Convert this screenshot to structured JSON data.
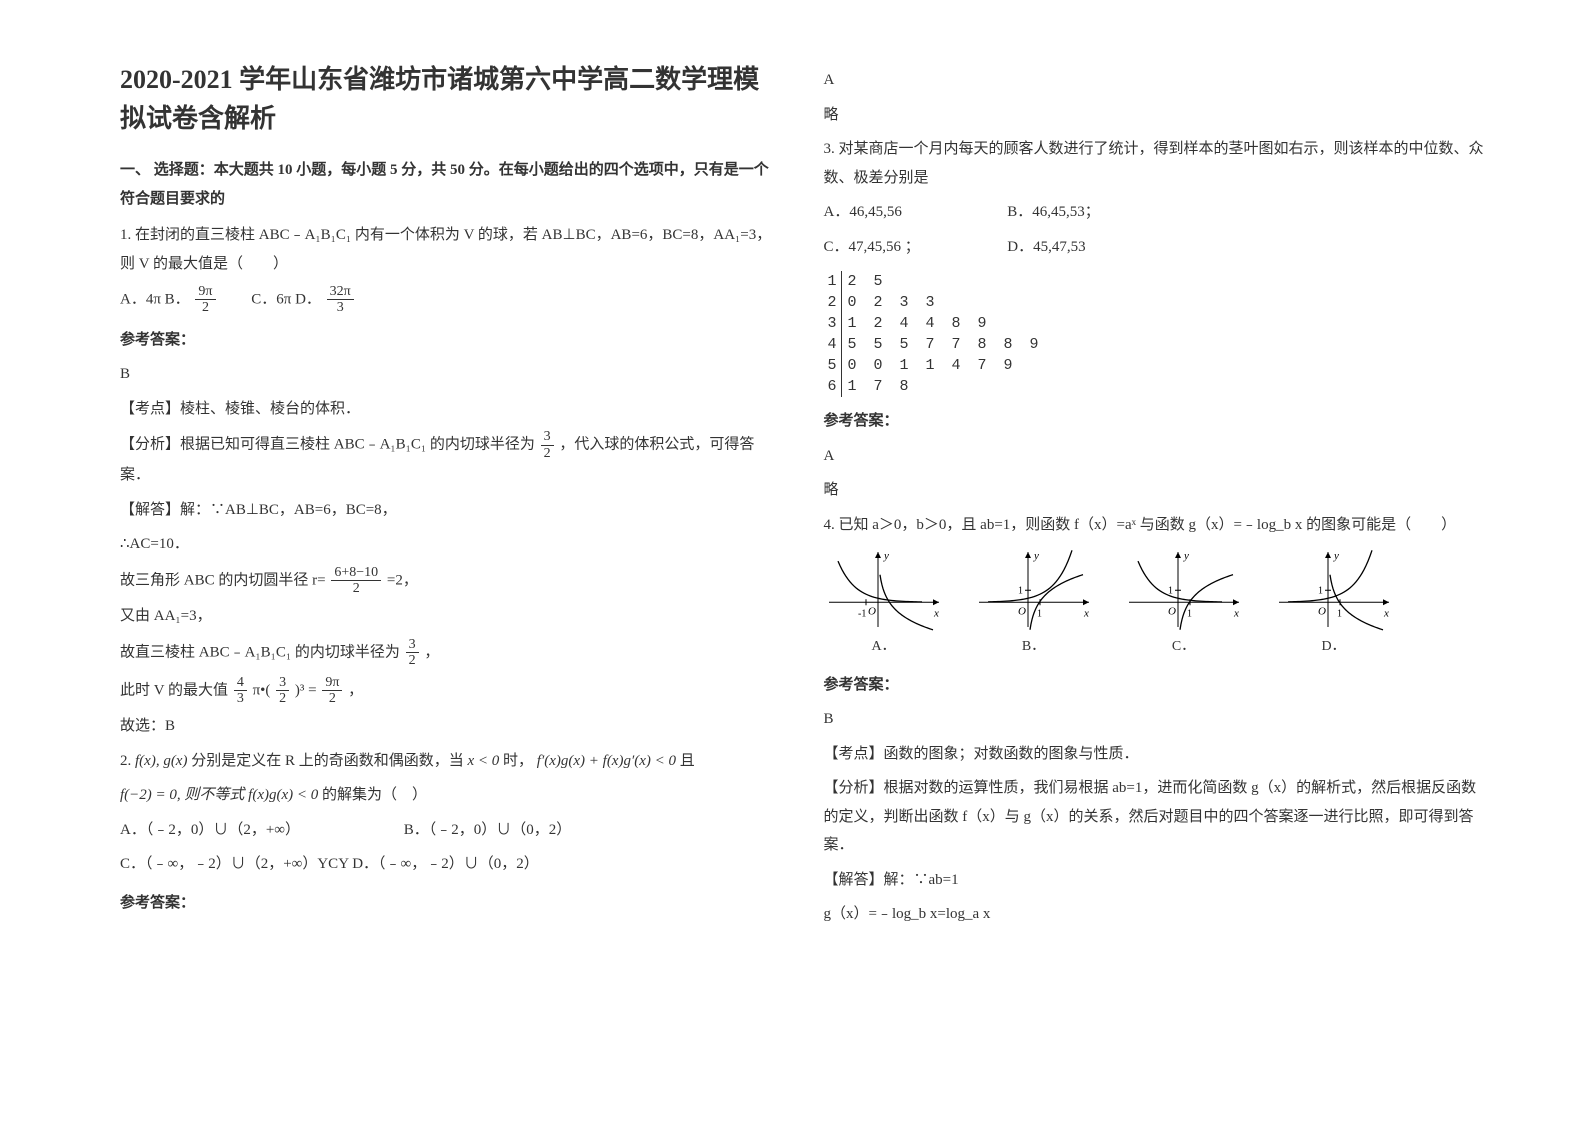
{
  "title": "2020-2021 学年山东省潍坊市诸城第六中学高二数学理模拟试卷含解析",
  "section1": "一、 选择题：本大题共 10 小题，每小题 5 分，共 50 分。在每小题给出的四个选项中，只有是一个符合题目要求的",
  "q1": {
    "text": "1. 在封闭的直三棱柱 ABC﹣A₁B₁C₁ 内有一个体积为 V 的球，若 AB⊥BC，AB=6，BC=8，AA₁=3，则 V 的最大值是（　　）",
    "optA_pre": "A．4π  B．",
    "optA_frac_num": "9π",
    "optA_frac_den": "2",
    "optC_pre": "　　C．6π  D．",
    "optC_frac_num": "32π",
    "optC_frac_den": "3",
    "ans_label": "参考答案：",
    "ans": "B",
    "kp": "【考点】棱柱、棱锥、棱台的体积．",
    "an_pre": "【分析】根据已知可得直三棱柱 ABC﹣A₁B₁C₁ 的内切球半径为",
    "an_frac_num": "3",
    "an_frac_den": "2",
    "an_post": "，代入球的体积公式，可得答案．",
    "s1": "【解答】解：∵AB⊥BC，AB=6，BC=8，",
    "s2": "∴AC=10．",
    "s3_pre": "故三角形 ABC 的内切圆半径 r=",
    "s3_frac_num": "6+8−10",
    "s3_frac_den": "2",
    "s3_post": "=2，",
    "s4": "又由 AA₁=3，",
    "s5_pre": "故直三棱柱 ABC﹣A₁B₁C₁ 的内切球半径为",
    "s5_frac_num": "3",
    "s5_frac_den": "2",
    "s5_post": "，",
    "s6_pre": "此时 V 的最大值",
    "s6_f1n": "4",
    "s6_f1d": "3",
    "s6_mid": "π•(",
    "s6_f2n": "3",
    "s6_f2d": "2",
    "s6_mid2": ")³ =",
    "s6_f3n": "9π",
    "s6_f3d": "2",
    "s6_post": "，",
    "s7": "故选：B"
  },
  "q2": {
    "pre": "2. ",
    "fg": "f(x), g(x)",
    "t1": " 分别是定义在 R 上的奇函数和偶函数，当 ",
    "cond1": "x < 0",
    "t2": " 时，",
    "cond2": "f′(x)g(x) + f(x)g′(x) < 0",
    "t3": " 且",
    "line2a": "f(−2) = 0, 则不等式 f(x)g(x) < 0",
    "line2b": " 的解集为（　）",
    "oA": "A．（﹣2，0）∪（2，+∞）",
    "oB": "B．（﹣2，0）∪（0，2）",
    "oC": "C．（﹣∞，﹣2）∪（2，+∞）YCY D．（﹣∞，﹣2）∪（0，2）",
    "ans_label": "参考答案：",
    "ans": "A",
    "exp": "略"
  },
  "q3": {
    "text": "3. 对某商店一个月内每天的顾客人数进行了统计，得到样本的茎叶图如右示，则该样本的中位数、众数、极差分别是",
    "oA": "A．46,45,56",
    "oB": "B．46,45,53；",
    "oC": "C．47,45,56 ；",
    "oD": "D．45,47,53",
    "stems": [
      "1",
      "2",
      "3",
      "4",
      "5",
      "6"
    ],
    "leaves": [
      "2 5",
      "0 2 3 3",
      "1 2 4 4 8 9",
      "5 5 5 7 7 8 8 9",
      "0 0 1 1 4 7 9",
      "1 7 8"
    ],
    "ans_label": "参考答案：",
    "ans": "A",
    "exp": "略"
  },
  "q4": {
    "text": "4. 已知 a＞0，b＞0，且 ab=1，则函数 f（x）=aˣ 与函数 g（x）=﹣log_b x 的图象可能是（　　）",
    "labels": [
      "A．",
      "B．",
      "C．",
      "D．"
    ],
    "ans_label": "参考答案：",
    "ans": "B",
    "kp": "【考点】函数的图象；对数函数的图象与性质．",
    "an": "【分析】根据对数的运算性质，我们易根据 ab=1，进而化简函数 g（x）的解析式，然后根据反函数的定义，判断出函数 f（x）与 g（x）的关系，然后对题目中的四个答案逐一进行比照，即可得到答案．",
    "s1": "【解答】解：∵ab=1",
    "s2": "g（x）=﹣log_b x=log_a x"
  },
  "colors": {
    "text": "#333333",
    "bg": "#ffffff",
    "axis": "#000000"
  },
  "graph": {
    "w": 120,
    "h": 85,
    "axis_color": "#000000",
    "curve_color": "#000000"
  }
}
